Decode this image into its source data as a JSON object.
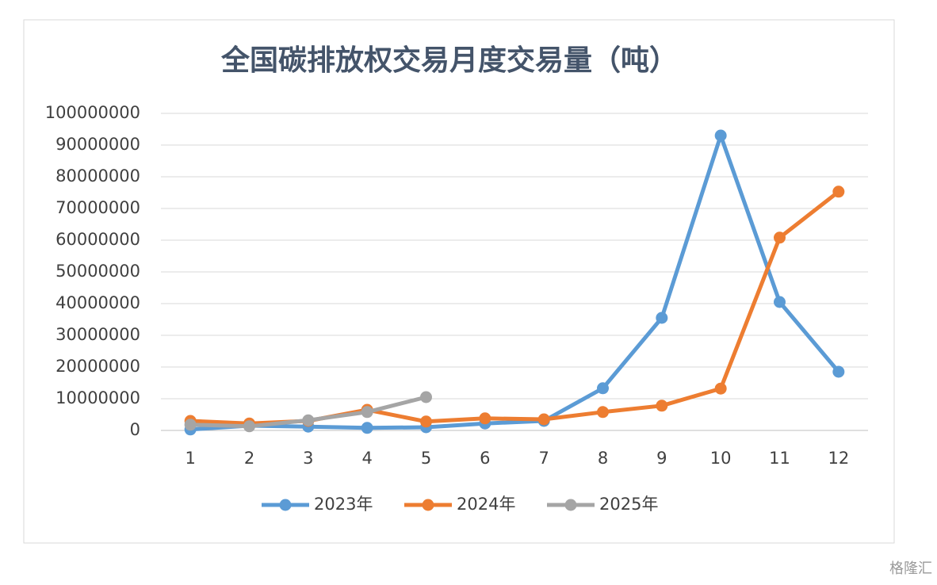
{
  "chart_data": {
    "type": "line",
    "title": "全国碳排放权交易月度交易量（吨）",
    "categories": [
      "1",
      "2",
      "3",
      "4",
      "5",
      "6",
      "7",
      "8",
      "9",
      "10",
      "11",
      "12"
    ],
    "series": [
      {
        "name": "2023年",
        "color": "#5b9bd5",
        "values": [
          300000,
          1500000,
          1200000,
          800000,
          1000000,
          2200000,
          3000000,
          13300000,
          35500000,
          93000000,
          40500000,
          18500000
        ]
      },
      {
        "name": "2024年",
        "color": "#ed7d31",
        "values": [
          3000000,
          2200000,
          3000000,
          6500000,
          2800000,
          3800000,
          3500000,
          5800000,
          7800000,
          13200000,
          60800000,
          75300000
        ]
      },
      {
        "name": "2025年",
        "color": "#a5a5a5",
        "values": [
          1800000,
          1300000,
          3200000,
          5800000,
          10500000,
          null,
          null,
          null,
          null,
          null,
          null,
          null
        ]
      }
    ],
    "ylim": [
      0,
      100000000
    ],
    "yticks": [
      0,
      10000000,
      20000000,
      30000000,
      40000000,
      50000000,
      60000000,
      70000000,
      80000000,
      90000000,
      100000000
    ],
    "grid": true,
    "legend": "bottom"
  },
  "watermark": "格隆汇"
}
